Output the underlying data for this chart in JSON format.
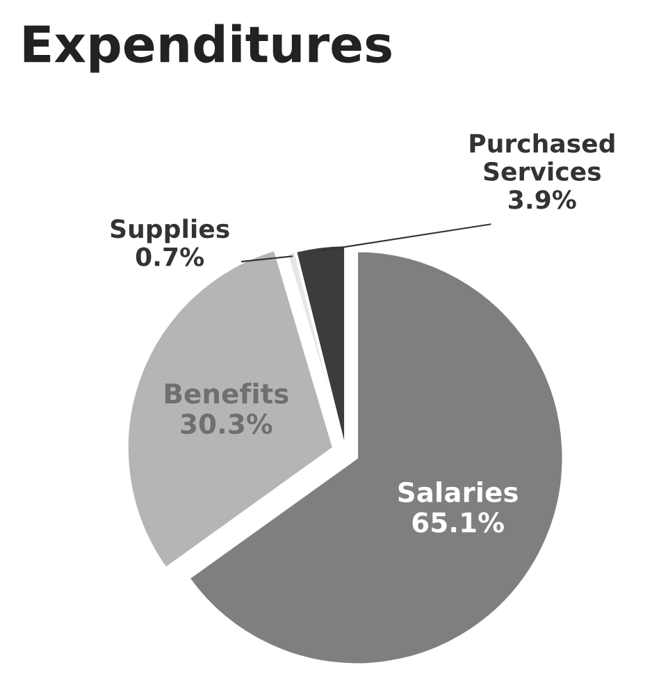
{
  "chart_data": {
    "type": "pie",
    "title": "Expenditures",
    "categories": [
      "Salaries",
      "Benefits",
      "Supplies",
      "Purchased Services"
    ],
    "values": [
      65.1,
      30.3,
      0.7,
      3.9
    ],
    "value_labels": [
      "65.1%",
      "30.3%",
      "0.7%",
      "3.9%"
    ],
    "colors": [
      "#7f7f7f",
      "#b5b5b5",
      "#e6e6e6",
      "#3c3c3c"
    ]
  }
}
